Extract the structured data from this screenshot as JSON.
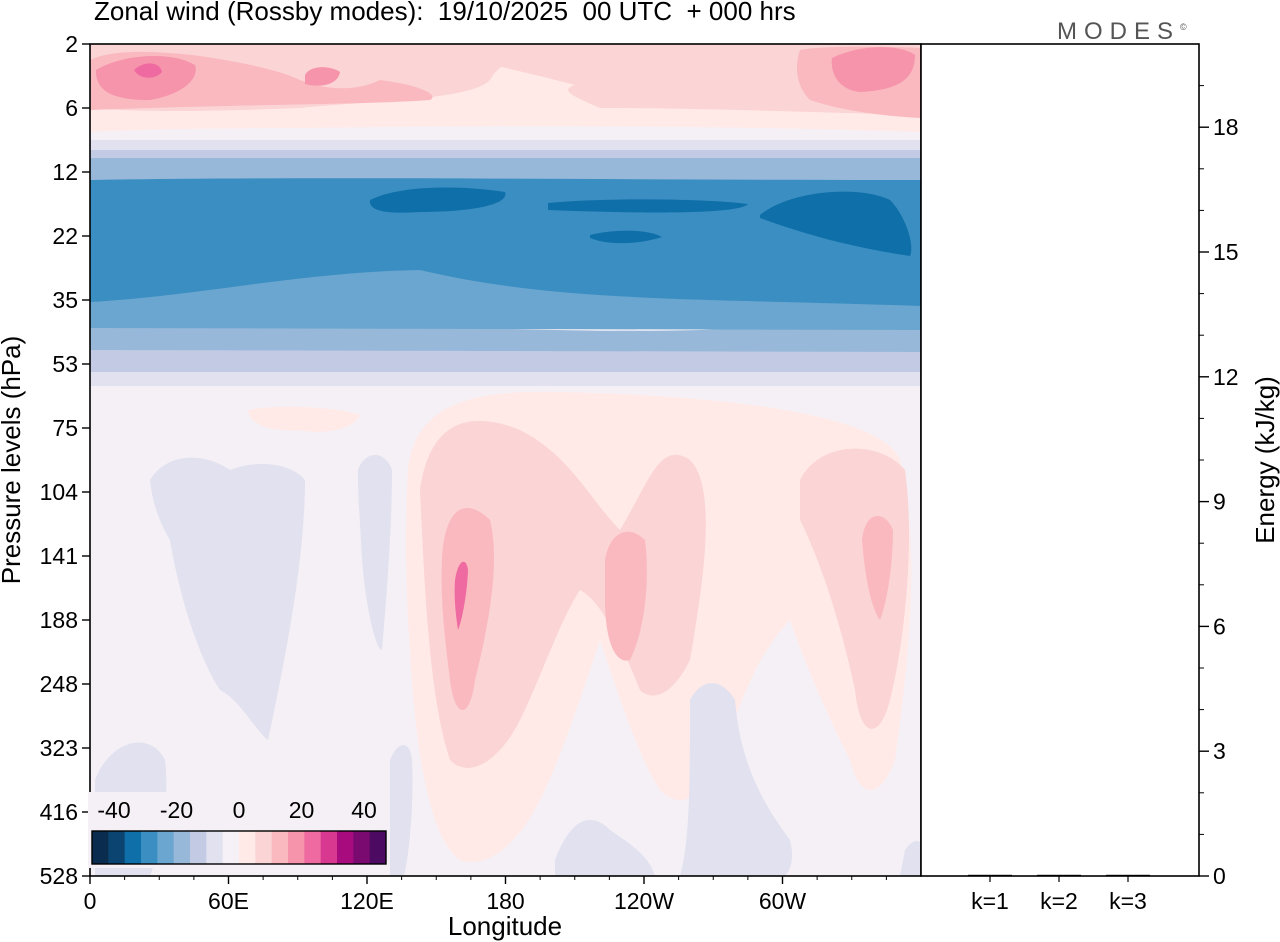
{
  "header": {
    "title": "Zonal wind (Rossby modes):  19/10/2025  00 UTC  + 000 hrs",
    "logo": "MODES",
    "logo_mark": "©"
  },
  "chart_data": [
    {
      "type": "heatmap",
      "title": "Zonal wind (Rossby modes):  19/10/2025  00 UTC  + 000 hrs",
      "xlabel": "Longitude",
      "ylabel": "Pressure levels (hPa)",
      "x_ticks": [
        "0",
        "60E",
        "120E",
        "180",
        "120W",
        "60W"
      ],
      "y_ticks": [
        "2",
        "6",
        "12",
        "22",
        "35",
        "53",
        "75",
        "104",
        "141",
        "188",
        "248",
        "323",
        "416",
        "528"
      ],
      "y_scale": "log (pressure, increasing downward)",
      "colorbar": {
        "tick_labels": [
          "-40",
          "-20",
          "0",
          "20",
          "40"
        ],
        "colors": [
          "#0a2c4e",
          "#0b4470",
          "#0f6fa8",
          "#3b8ec2",
          "#6aa6cf",
          "#98b8da",
          "#c3cbe4",
          "#e1e1ef",
          "#f6f1f6",
          "#ffeae8",
          "#fbd4d5",
          "#f9b9bf",
          "#f694ab",
          "#ee6aa0",
          "#d8388f",
          "#a80b7d",
          "#7a0a70",
          "#4d0a62"
        ]
      },
      "field": {
        "bands": [
          {
            "level_range": [
              "2",
              "8"
            ],
            "wind": "positive (about 5 to 20)"
          },
          {
            "level_range": [
              "12",
              "40"
            ],
            "wind": "negative (about -10 to -35)"
          },
          {
            "level_range": [
              "53",
              "528"
            ],
            "wind": "near zero, weak positive lobes near 180 and 120W"
          }
        ]
      }
    },
    {
      "type": "bar",
      "categories": [
        "k=1",
        "k=2",
        "k=3"
      ],
      "values": [
        0.02,
        0.01,
        0.01
      ],
      "ylabel": "Energy (kJ/kg)",
      "y_ticks": [
        "0",
        "3",
        "6",
        "9",
        "12",
        "15",
        "18"
      ],
      "ylim": [
        0,
        20
      ]
    }
  ]
}
